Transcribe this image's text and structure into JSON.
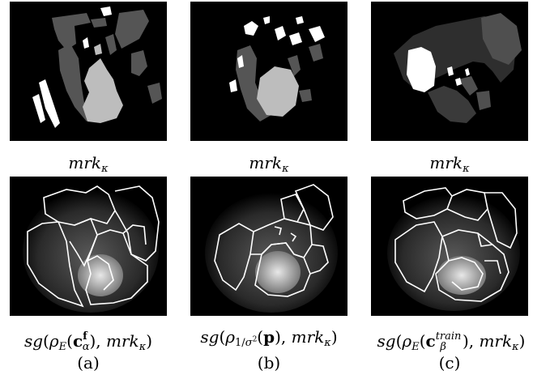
{
  "columns": [
    {
      "label": "(a)",
      "top_caption": "mrkκ",
      "bottom_caption": "sg(ρE(cfα),mrkκ)",
      "palette": {
        "dark": "#555555",
        "light": "#bdbdbd",
        "white": "#ffffff"
      }
    },
    {
      "label": "(b)",
      "top_caption": "mrkκ",
      "bottom_caption": "sg(ρ1/σ²(p),mrkκ)",
      "palette": {
        "dark": "#555555",
        "light": "#bdbdbd",
        "white": "#ffffff"
      }
    },
    {
      "label": "(c)",
      "top_caption": "mrkκ",
      "bottom_caption": "sg(ρE(ctrainβ),mrkκ)",
      "palette": {
        "dark": "#4f4f4f",
        "mid": "#3a3a3a",
        "white": "#ffffff"
      }
    }
  ]
}
